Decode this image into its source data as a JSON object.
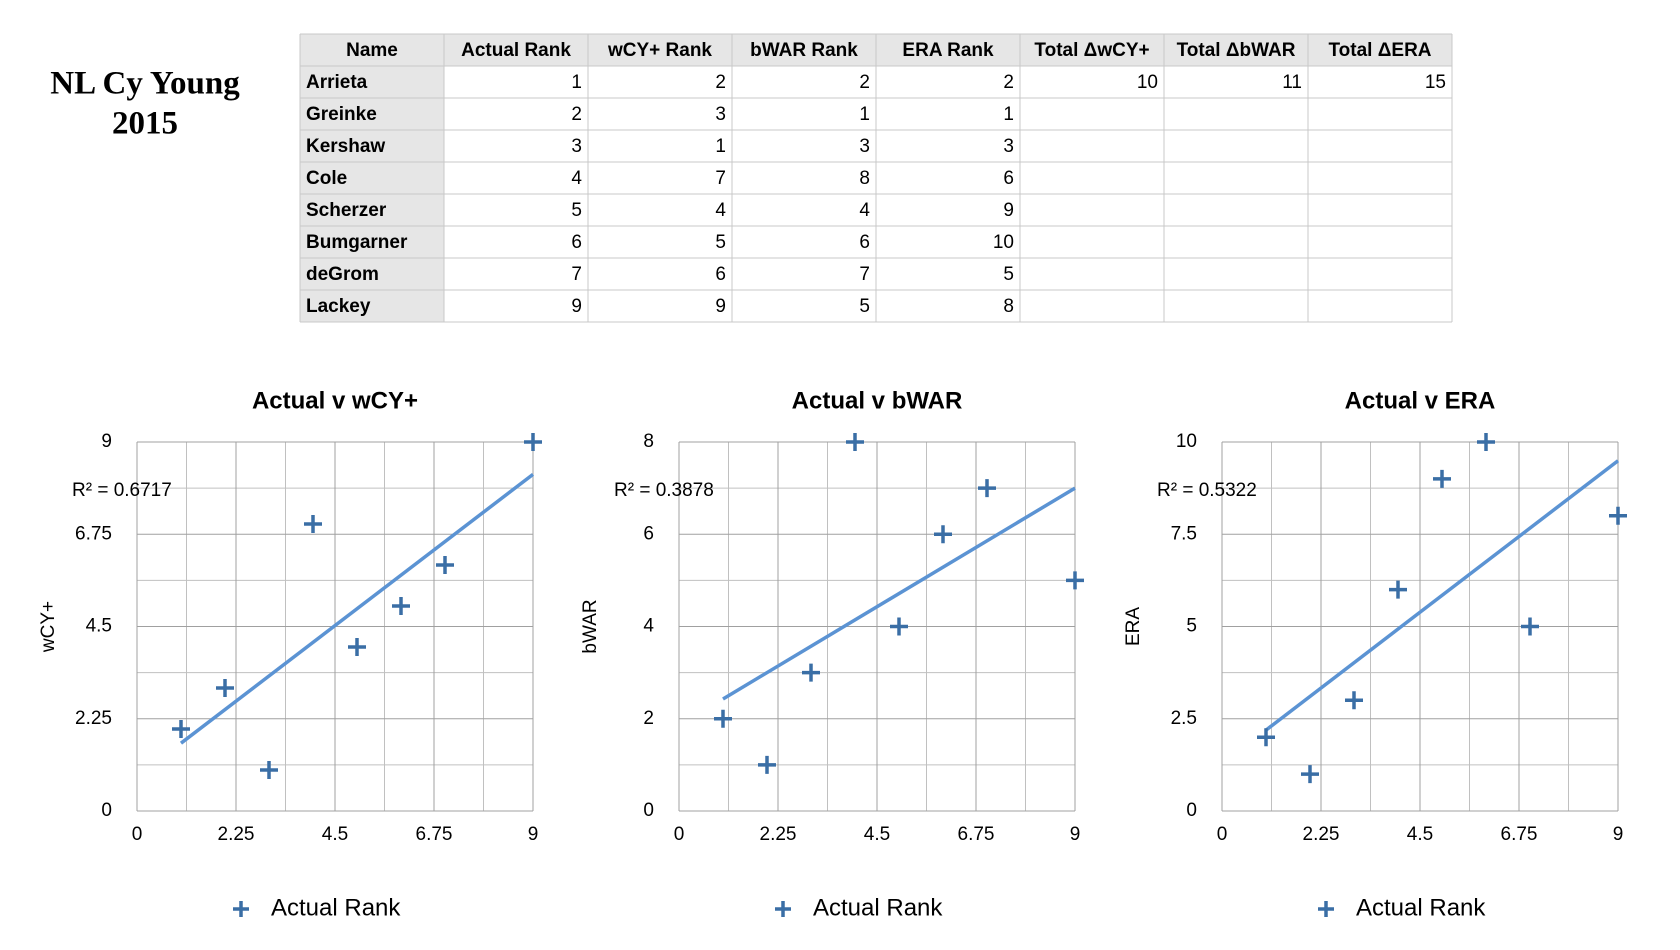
{
  "header": {
    "title_line1": "NL Cy Young",
    "title_line2": "2015"
  },
  "table": {
    "header": [
      "Name",
      "Actual Rank",
      "wCY+ Rank",
      "bWAR Rank",
      "ERA Rank",
      "Total ΔwCY+",
      "Total ΔbWAR",
      "Total ΔERA"
    ],
    "rows": [
      [
        "Arrieta",
        1,
        2,
        2,
        2,
        10,
        11,
        15
      ],
      [
        "Greinke",
        2,
        3,
        1,
        1,
        null,
        null,
        null
      ],
      [
        "Kershaw",
        3,
        1,
        3,
        3,
        null,
        null,
        null
      ],
      [
        "Cole",
        4,
        7,
        8,
        6,
        null,
        null,
        null
      ],
      [
        "Scherzer",
        5,
        4,
        4,
        9,
        null,
        null,
        null
      ],
      [
        "Bumgarner",
        6,
        5,
        6,
        10,
        null,
        null,
        null
      ],
      [
        "deGrom",
        7,
        6,
        7,
        5,
        null,
        null,
        null
      ],
      [
        "Lackey",
        9,
        9,
        5,
        8,
        null,
        null,
        null
      ]
    ]
  },
  "chart_data": [
    {
      "type": "scatter",
      "title": "Actual v wCY+",
      "y_label": "wCY+",
      "annotation": "R² = 0.6717",
      "trendline": true,
      "grid": true,
      "xlim": [
        0,
        9
      ],
      "xticks": [
        0,
        2.25,
        4.5,
        6.75,
        9
      ],
      "ylim": [
        0,
        9
      ],
      "yticks": [
        0,
        2.25,
        4.5,
        6.75,
        9
      ],
      "series": [
        {
          "name": "Actual Rank",
          "color": "#3a6ea5",
          "x": [
            1,
            2,
            3,
            4,
            5,
            6,
            7,
            9
          ],
          "values": [
            2,
            3,
            1,
            7,
            4,
            5,
            6,
            9
          ]
        }
      ]
    },
    {
      "type": "scatter",
      "title": "Actual v bWAR",
      "y_label": "bWAR",
      "annotation": "R² = 0.3878",
      "trendline": true,
      "grid": true,
      "xlim": [
        0,
        9
      ],
      "xticks": [
        0,
        2.25,
        4.5,
        6.75,
        9
      ],
      "ylim": [
        0,
        8
      ],
      "yticks": [
        0,
        2,
        4,
        6,
        8
      ],
      "series": [
        {
          "name": "Actual Rank",
          "color": "#3a6ea5",
          "x": [
            1,
            2,
            3,
            4,
            5,
            6,
            7,
            9
          ],
          "values": [
            2,
            1,
            3,
            8,
            4,
            6,
            7,
            5
          ]
        }
      ]
    },
    {
      "type": "scatter",
      "title": "Actual v ERA",
      "y_label": "ERA",
      "annotation": "R² = 0.5322",
      "trendline": true,
      "grid": true,
      "xlim": [
        0,
        9
      ],
      "xticks": [
        0,
        2.25,
        4.5,
        6.75,
        9
      ],
      "ylim": [
        0,
        10
      ],
      "yticks": [
        0,
        2.5,
        5,
        7.5,
        10
      ],
      "series": [
        {
          "name": "Actual Rank",
          "color": "#3a6ea5",
          "x": [
            1,
            2,
            3,
            4,
            5,
            6,
            7,
            9
          ],
          "values": [
            2,
            1,
            3,
            6,
            9,
            10,
            5,
            8
          ]
        }
      ]
    }
  ]
}
